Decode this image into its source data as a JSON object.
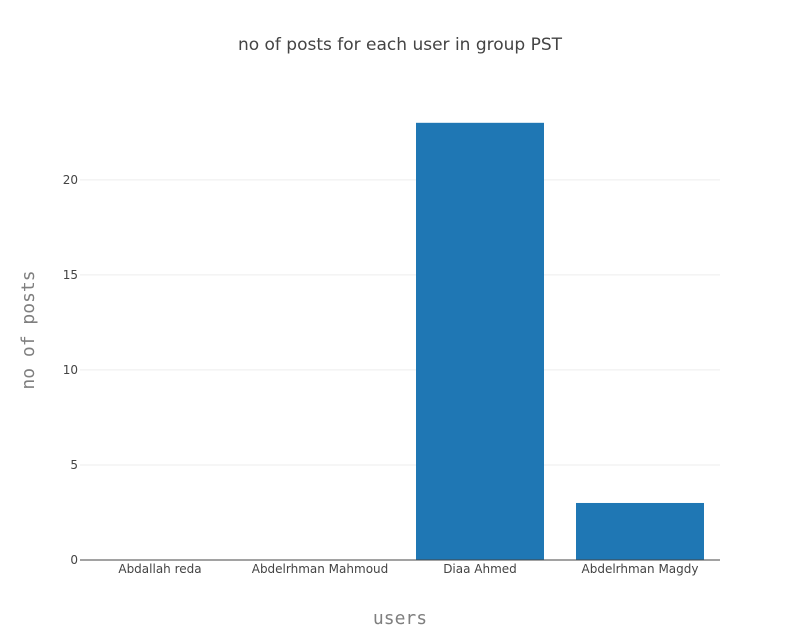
{
  "chart_data": {
    "type": "bar",
    "title": "no of posts for each user in group PST",
    "xlabel": "users",
    "ylabel": "no of posts",
    "categories": [
      "Abdallah reda",
      "Abdelrhman Mahmoud",
      "Diaa Ahmed",
      "Abdelrhman Magdy"
    ],
    "values": [
      0,
      0,
      23,
      3
    ],
    "ylim": [
      0,
      24.2
    ],
    "yticks": [
      0,
      5,
      10,
      15,
      20
    ],
    "grid": true,
    "bar_color": "#1f77b4"
  }
}
